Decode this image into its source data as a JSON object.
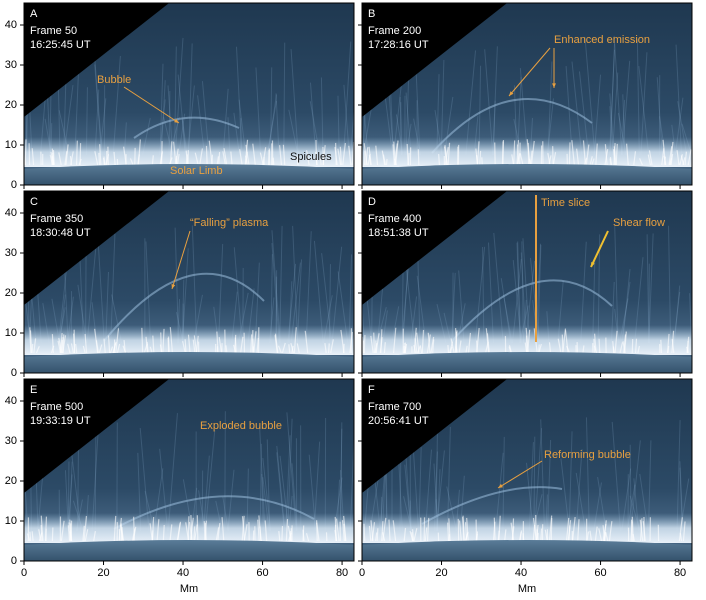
{
  "axes": {
    "xlabel": "Mm",
    "xlim": [
      0,
      83
    ],
    "ylim": [
      0,
      45.5
    ],
    "xticks": [
      0,
      20,
      40,
      60,
      80
    ],
    "yticks": [
      0,
      10,
      20,
      30,
      40
    ]
  },
  "panels": [
    {
      "letter": "A",
      "frame": "Frame 50",
      "time": "16:25:45 UT",
      "annotations": [
        "Bubble",
        "Spicules",
        "Solar Limb"
      ]
    },
    {
      "letter": "B",
      "frame": "Frame 200",
      "time": "17:28:16 UT",
      "annotations": [
        "Enhanced emission"
      ]
    },
    {
      "letter": "C",
      "frame": "Frame 350",
      "time": "18:30:48 UT",
      "annotations": [
        "“Falling” plasma"
      ]
    },
    {
      "letter": "D",
      "frame": "Frame 400",
      "time": "18:51:38 UT",
      "annotations": [
        "Time slice",
        "Shear flow"
      ]
    },
    {
      "letter": "E",
      "frame": "Frame 500",
      "time": "19:33:19 UT",
      "annotations": [
        "Exploded bubble"
      ]
    },
    {
      "letter": "F",
      "frame": "Frame 700",
      "time": "20:56:41 UT",
      "annotations": [
        "Reforming bubble"
      ]
    }
  ]
}
